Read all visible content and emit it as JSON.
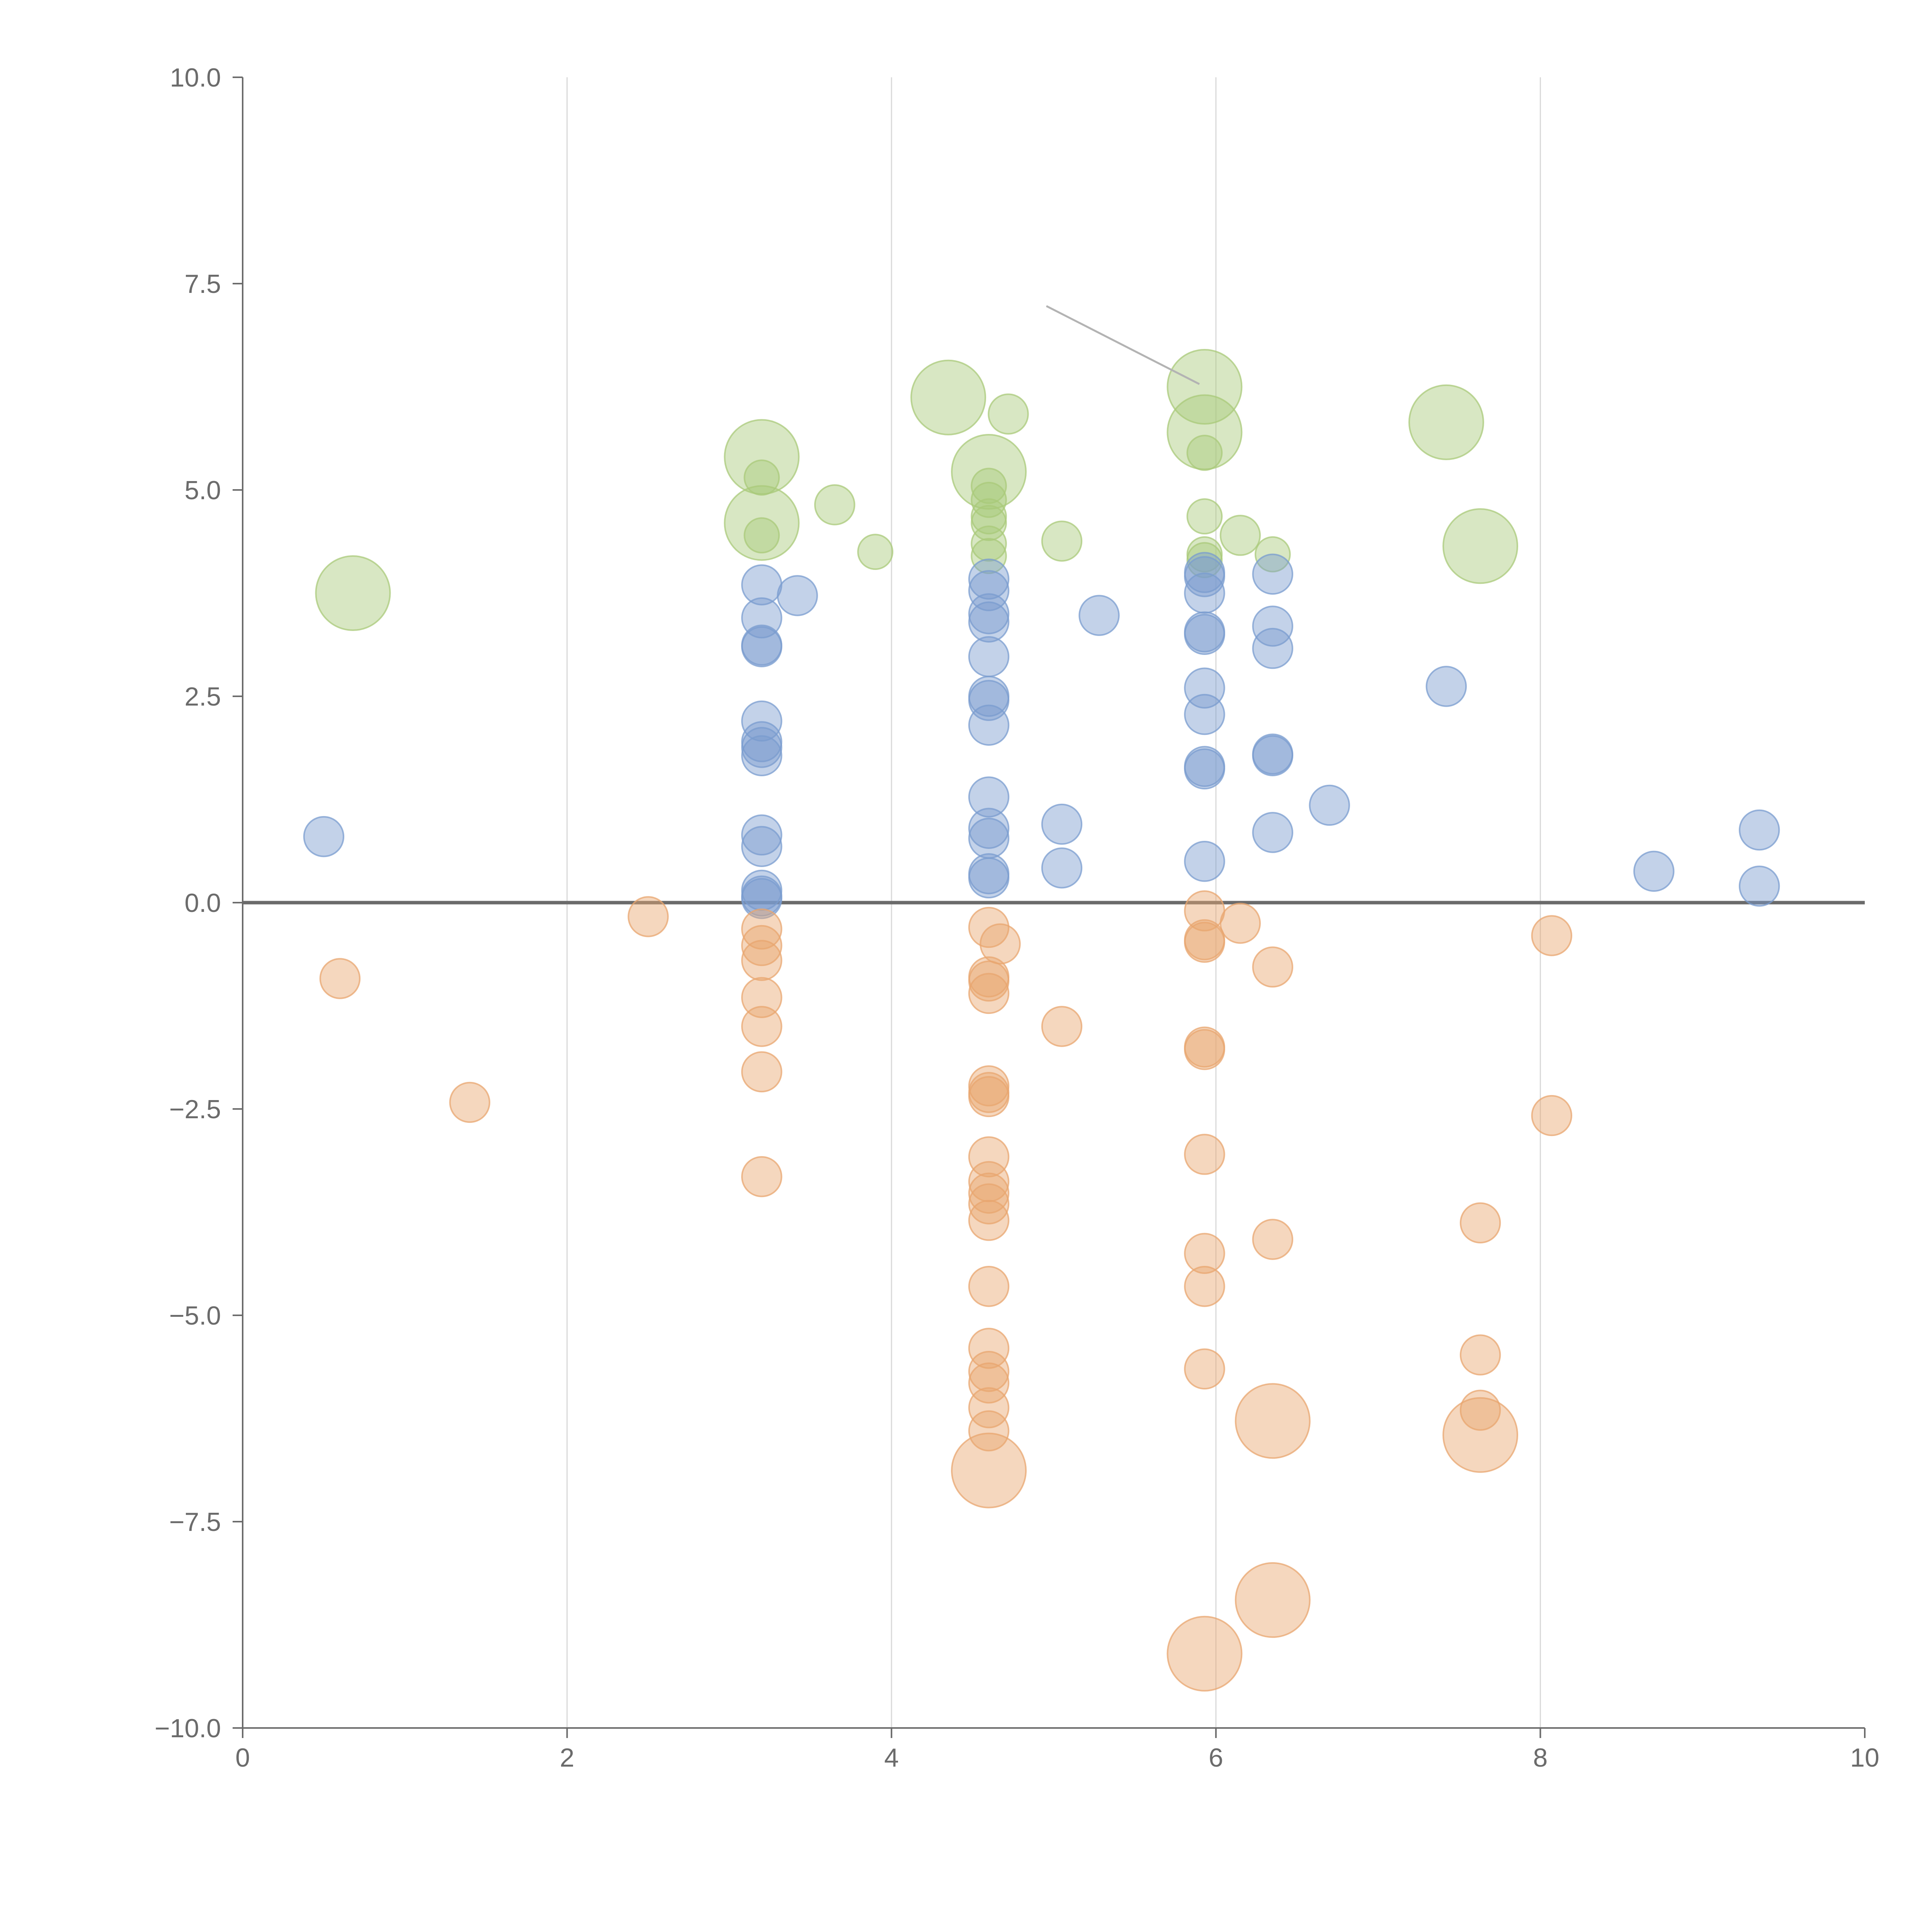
{
  "chart_data": {
    "type": "scatter",
    "title": "",
    "xlabel": "",
    "ylabel": "",
    "xlim": [
      0,
      10
    ],
    "ylim": [
      -10,
      10
    ],
    "x_ticks": [
      "0",
      "2",
      "4",
      "6",
      "8",
      "10"
    ],
    "y_ticks": [
      "10.0",
      "7.5",
      "5.0",
      "2.5",
      "0.0",
      "−2.5",
      "−5.0",
      "−7.5",
      "−10.0"
    ],
    "grid": "vertical",
    "legend": "none",
    "colors": {
      "positive_high": "#a9c97a",
      "positive_low": "#7a9ccf",
      "negative": "#e8a66f"
    },
    "series": [
      {
        "name": "green",
        "color": "#a9c97a",
        "points": [
          [
            0.68,
            3.75,
            30
          ],
          [
            3.2,
            5.4,
            30
          ],
          [
            3.2,
            5.15,
            14
          ],
          [
            3.2,
            4.6,
            30
          ],
          [
            3.2,
            4.45,
            14
          ],
          [
            3.65,
            4.82,
            16
          ],
          [
            3.9,
            4.25,
            14
          ],
          [
            4.35,
            6.12,
            30
          ],
          [
            4.6,
            5.22,
            30
          ],
          [
            4.6,
            5.05,
            14
          ],
          [
            4.6,
            4.88,
            14
          ],
          [
            4.6,
            4.68,
            14
          ],
          [
            4.6,
            4.6,
            14
          ],
          [
            4.6,
            4.35,
            14
          ],
          [
            4.6,
            4.2,
            14
          ],
          [
            4.72,
            5.92,
            16
          ],
          [
            5.05,
            4.38,
            16
          ],
          [
            5.93,
            6.25,
            30
          ],
          [
            5.93,
            5.7,
            30
          ],
          [
            5.93,
            5.45,
            14
          ],
          [
            5.93,
            4.68,
            14
          ],
          [
            5.93,
            4.22,
            14
          ],
          [
            5.93,
            4.15,
            14
          ],
          [
            6.15,
            4.45,
            16
          ],
          [
            6.35,
            4.22,
            14
          ],
          [
            7.42,
            5.82,
            30
          ],
          [
            7.63,
            4.32,
            30
          ]
        ]
      },
      {
        "name": "blue",
        "color": "#7a9ccf",
        "points": [
          [
            0.5,
            0.8,
            16
          ],
          [
            3.2,
            3.85,
            16
          ],
          [
            3.2,
            3.45,
            16
          ],
          [
            3.2,
            3.12,
            16
          ],
          [
            3.2,
            3.1,
            16
          ],
          [
            3.2,
            2.2,
            16
          ],
          [
            3.2,
            1.95,
            16
          ],
          [
            3.2,
            1.88,
            16
          ],
          [
            3.2,
            1.78,
            16
          ],
          [
            3.2,
            0.82,
            16
          ],
          [
            3.2,
            0.68,
            16
          ],
          [
            3.2,
            0.15,
            16
          ],
          [
            3.2,
            0.08,
            16
          ],
          [
            3.2,
            0.05,
            16
          ],
          [
            3.42,
            3.72,
            16
          ],
          [
            4.6,
            3.92,
            16
          ],
          [
            4.6,
            3.78,
            16
          ],
          [
            4.6,
            3.5,
            16
          ],
          [
            4.6,
            3.4,
            16
          ],
          [
            4.6,
            2.98,
            16
          ],
          [
            4.6,
            2.5,
            16
          ],
          [
            4.6,
            2.45,
            16
          ],
          [
            4.6,
            2.15,
            16
          ],
          [
            4.6,
            1.28,
            16
          ],
          [
            4.6,
            0.9,
            16
          ],
          [
            4.6,
            0.78,
            16
          ],
          [
            4.6,
            0.35,
            16
          ],
          [
            4.6,
            0.3,
            16
          ],
          [
            5.05,
            0.95,
            16
          ],
          [
            5.05,
            0.42,
            16
          ],
          [
            5.28,
            3.48,
            16
          ],
          [
            5.93,
            4.0,
            16
          ],
          [
            5.93,
            3.95,
            16
          ],
          [
            5.93,
            3.75,
            16
          ],
          [
            5.93,
            3.28,
            16
          ],
          [
            5.93,
            3.25,
            16
          ],
          [
            5.93,
            2.6,
            16
          ],
          [
            5.93,
            2.28,
            16
          ],
          [
            5.93,
            1.65,
            16
          ],
          [
            5.93,
            1.62,
            16
          ],
          [
            5.93,
            0.5,
            16
          ],
          [
            6.35,
            3.98,
            16
          ],
          [
            6.35,
            3.35,
            16
          ],
          [
            6.35,
            3.08,
            16
          ],
          [
            6.35,
            1.8,
            16
          ],
          [
            6.35,
            1.78,
            16
          ],
          [
            6.35,
            0.85,
            16
          ],
          [
            6.7,
            1.18,
            16
          ],
          [
            7.42,
            2.62,
            16
          ],
          [
            8.7,
            0.38,
            16
          ],
          [
            9.35,
            0.88,
            16
          ],
          [
            9.35,
            0.2,
            16
          ]
        ]
      },
      {
        "name": "orange",
        "color": "#e8a66f",
        "points": [
          [
            0.6,
            -0.92,
            16
          ],
          [
            1.4,
            -2.42,
            16
          ],
          [
            2.5,
            -0.17,
            16
          ],
          [
            3.2,
            -0.32,
            16
          ],
          [
            3.2,
            -0.52,
            16
          ],
          [
            3.2,
            -0.7,
            16
          ],
          [
            3.2,
            -1.15,
            16
          ],
          [
            3.2,
            -1.5,
            16
          ],
          [
            3.2,
            -2.05,
            16
          ],
          [
            3.2,
            -3.32,
            16
          ],
          [
            4.6,
            -0.3,
            16
          ],
          [
            4.67,
            -0.5,
            16
          ],
          [
            4.6,
            -0.9,
            16
          ],
          [
            4.6,
            -0.95,
            16
          ],
          [
            4.6,
            -1.1,
            16
          ],
          [
            4.6,
            -2.22,
            16
          ],
          [
            4.6,
            -2.3,
            16
          ],
          [
            4.6,
            -2.35,
            16
          ],
          [
            4.6,
            -3.08,
            16
          ],
          [
            4.6,
            -3.38,
            16
          ],
          [
            4.6,
            -3.52,
            16
          ],
          [
            4.6,
            -3.65,
            16
          ],
          [
            4.6,
            -3.85,
            16
          ],
          [
            4.6,
            -4.65,
            16
          ],
          [
            4.6,
            -5.4,
            16
          ],
          [
            4.6,
            -5.68,
            16
          ],
          [
            4.6,
            -5.82,
            16
          ],
          [
            4.6,
            -6.12,
            16
          ],
          [
            4.6,
            -6.4,
            16
          ],
          [
            4.6,
            -6.88,
            30
          ],
          [
            5.05,
            -1.5,
            16
          ],
          [
            5.93,
            -0.1,
            16
          ],
          [
            5.93,
            -0.45,
            16
          ],
          [
            5.93,
            -0.48,
            16
          ],
          [
            5.93,
            -1.75,
            16
          ],
          [
            5.93,
            -1.78,
            16
          ],
          [
            5.93,
            -3.05,
            16
          ],
          [
            5.93,
            -4.25,
            16
          ],
          [
            5.93,
            -4.65,
            16
          ],
          [
            5.93,
            -5.65,
            16
          ],
          [
            5.93,
            -9.1,
            30
          ],
          [
            6.15,
            -0.25,
            16
          ],
          [
            6.35,
            -0.78,
            16
          ],
          [
            6.35,
            -4.08,
            16
          ],
          [
            6.35,
            -6.28,
            30
          ],
          [
            6.35,
            -8.45,
            30
          ],
          [
            7.63,
            -3.88,
            16
          ],
          [
            7.63,
            -5.48,
            16
          ],
          [
            7.63,
            -6.15,
            16
          ],
          [
            7.63,
            -6.45,
            30
          ],
          [
            8.07,
            -0.4,
            16
          ],
          [
            8.07,
            -2.58,
            16
          ]
        ]
      }
    ]
  }
}
